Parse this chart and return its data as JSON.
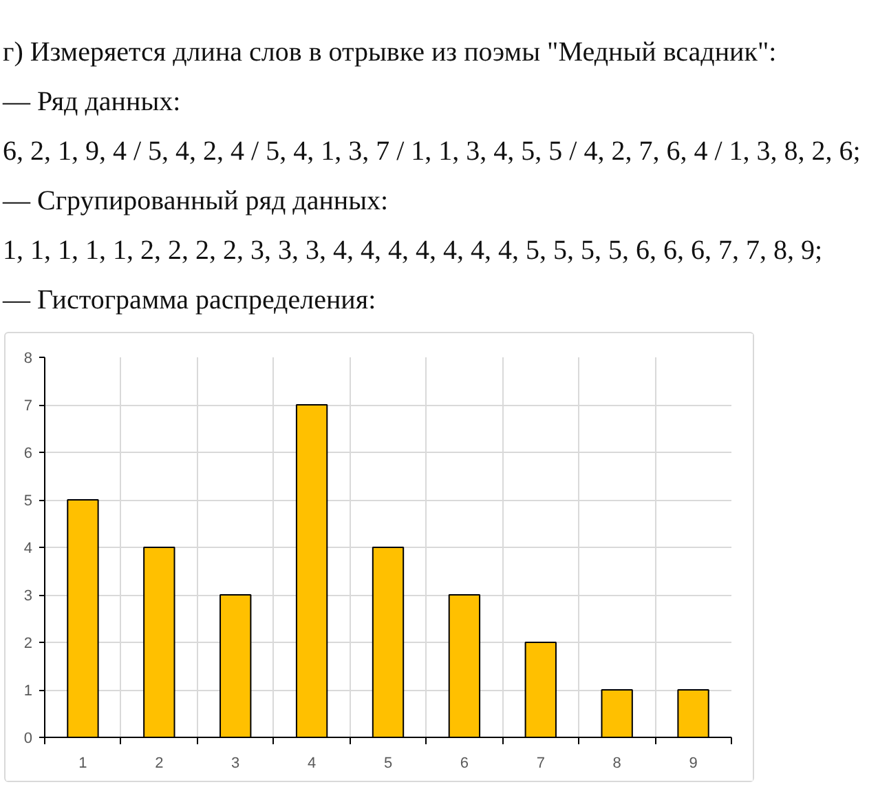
{
  "chart_data": {
    "type": "bar",
    "title": "г) Измеряется длина слов в отрывке из поэмы \"Медный всадник\":",
    "annotations": [
      "— Ряд данных:",
      "6, 2, 1, 9, 4 / 5, 4, 2, 4 / 5, 4, 1, 3, 7 / 1, 1, 3, 4, 5, 5 / 4, 2, 7, 6, 4 / 1, 3, 8, 2, 6;",
      "— Сгрупированный ряд данных:",
      "1, 1, 1, 1, 1, 2, 2, 2, 2, 3, 3, 3, 4, 4, 4, 4, 4, 4, 4, 5, 5, 5, 5, 6, 6, 6, 7, 7, 8, 9;",
      "— Гистограмма распределения:"
    ],
    "categories": [
      "1",
      "2",
      "3",
      "4",
      "5",
      "6",
      "7",
      "8",
      "9"
    ],
    "values": [
      5,
      4,
      3,
      7,
      4,
      3,
      2,
      1,
      1
    ],
    "color": "#ffc000",
    "ylim": [
      0,
      8
    ],
    "yticks": [
      0,
      1,
      2,
      3,
      4,
      5,
      6,
      7,
      8
    ],
    "grid": true
  }
}
